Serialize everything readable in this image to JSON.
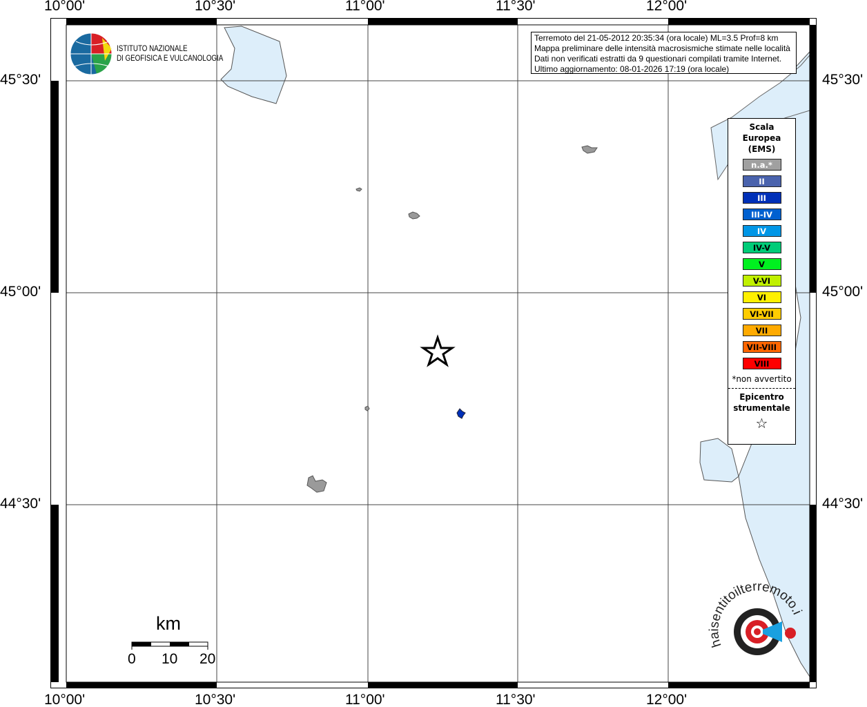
{
  "map": {
    "lon_labels": [
      "10°00'",
      "10°30'",
      "11°00'",
      "11°30'",
      "12°00'"
    ],
    "lat_labels": [
      "45°30'",
      "45°00'",
      "44°30'"
    ],
    "epicenter": {
      "lon": 11.23,
      "lat": 44.86
    }
  },
  "info_box": {
    "line1": "Terremoto del 21-05-2012 20:35:34 (ora locale) ML=3.5 Prof=8 km",
    "line2": "Mappa preliminare delle intensità macrosismiche stimate nelle località",
    "line3": "Dati non verificati estratti da 9 questionari compilati tramite Internet.",
    "line4": "Ultimo aggiornamento: 08-01-2026 17:19 (ora locale)"
  },
  "logo": {
    "line1": "ISTITUTO NAZIONALE",
    "line2": "DI GEOFISICA E VULCANOLOGIA"
  },
  "legend": {
    "title1": "Scala",
    "title2": "Europea",
    "title3": "(EMS)",
    "items": [
      {
        "label": "n.a.*",
        "color": "#a0a0a0",
        "text": "#ffffff"
      },
      {
        "label": "II",
        "color": "#4a63ad",
        "text": "#ffffff"
      },
      {
        "label": "III",
        "color": "#0030b8",
        "text": "#ffffff"
      },
      {
        "label": "III-IV",
        "color": "#0060d0",
        "text": "#ffffff"
      },
      {
        "label": "IV",
        "color": "#0096e6",
        "text": "#ffffff"
      },
      {
        "label": "IV-V",
        "color": "#00cc78",
        "text": "#000000"
      },
      {
        "label": "V",
        "color": "#00f020",
        "text": "#000000"
      },
      {
        "label": "V-VI",
        "color": "#c0f000",
        "text": "#000000"
      },
      {
        "label": "VI",
        "color": "#fff000",
        "text": "#000000"
      },
      {
        "label": "VI-VII",
        "color": "#ffcc00",
        "text": "#000000"
      },
      {
        "label": "VII",
        "color": "#ffaa00",
        "text": "#000000"
      },
      {
        "label": "VII-VIII",
        "color": "#ff6600",
        "text": "#000000"
      },
      {
        "label": "VIII",
        "color": "#ff0000",
        "text": "#000000"
      }
    ],
    "note": "*non avvertito",
    "epi1": "Epicentro",
    "epi2": "strumentale"
  },
  "scale_bar": {
    "unit": "km",
    "ticks": [
      "0",
      "10",
      "20"
    ]
  },
  "watermark": "haisentitoilterremoto.it www."
}
